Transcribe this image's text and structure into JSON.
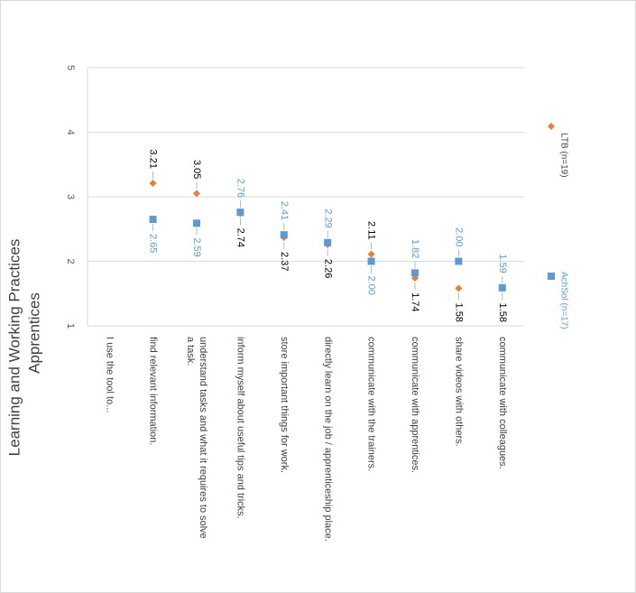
{
  "chart_data": {
    "type": "scatter",
    "orientation": "rotated-90-clockwise",
    "title": "Learning and Working Practices Apprentices",
    "title_lines": [
      "Learning and Working Practices",
      "Apprentices"
    ],
    "xlabel": "",
    "ylabel": "",
    "ylim": [
      1,
      5
    ],
    "yticks": [
      "1",
      "2",
      "3",
      "4",
      "5"
    ],
    "grid": true,
    "legend_position": "right",
    "categories": [
      [
        "I use the tool to..."
      ],
      [
        "find relevant information."
      ],
      [
        "understand tasks and what it requires to solve",
        "a task."
      ],
      [
        "inform myself about useful tips and tricks."
      ],
      [
        "store important things for work."
      ],
      [
        "directly learn on the job / apprenticeship place."
      ],
      [
        "communicate with the trainers."
      ],
      [
        "communicate with apprentices."
      ],
      [
        "share videos with others."
      ],
      [
        "communicate with colleagues."
      ]
    ],
    "series": [
      {
        "name": "LTB (n=19)",
        "color": "#ED7D31",
        "label_color": "#000000",
        "marker": "diamond",
        "values": [
          null,
          3.21,
          3.05,
          2.74,
          2.37,
          2.26,
          2.11,
          1.74,
          1.58,
          1.58
        ],
        "labels": [
          "",
          "3.21",
          "3.05",
          "2.74",
          "2.37",
          "2.26",
          "2.11",
          "1.74",
          "1.58",
          "1.58"
        ]
      },
      {
        "name": "AchSol (n=17)",
        "color": "#5B9BD5",
        "label_color": "#5B9BD5",
        "marker": "square",
        "values": [
          null,
          2.65,
          2.59,
          2.76,
          2.41,
          2.29,
          2.0,
          1.82,
          2.0,
          1.59
        ],
        "labels": [
          "",
          "2.65",
          "2.59",
          "2.76",
          "2.41",
          "2.29",
          "2.00",
          "1.82",
          "2.00",
          "1.59"
        ]
      }
    ]
  }
}
